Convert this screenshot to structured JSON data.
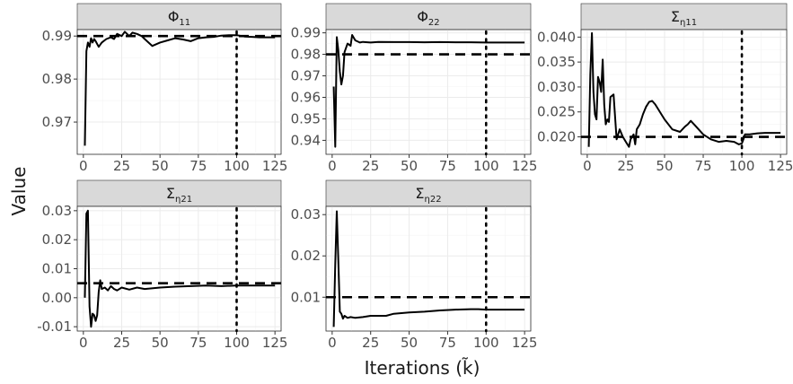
{
  "chart_data": {
    "type": "line",
    "xlabel": "Iterations (k̃)",
    "ylabel": "Value",
    "grid": true,
    "x_ticks": [
      0,
      25,
      50,
      75,
      100,
      125
    ],
    "panels": [
      {
        "title": "Φ",
        "title_sub": "11",
        "xlim": [
          -4,
          129
        ],
        "ylim": [
          0.9625,
          0.9915
        ],
        "y_ticks": [
          0.97,
          0.98,
          0.99
        ],
        "y_tick_labels": [
          "0.97",
          "0.98",
          "0.99"
        ],
        "reference_value": 0.99,
        "vertical_marker": 100,
        "series": [
          {
            "x": [
              1,
              2,
              3,
              4,
              5,
              6,
              7,
              8,
              10,
              12,
              15,
              18,
              20,
              22,
              25,
              27,
              30,
              32,
              35,
              38,
              40,
              45,
              50,
              55,
              60,
              65,
              70,
              75,
              80,
              85,
              90,
              95,
              100,
              105,
              110,
              115,
              120,
              125
            ],
            "y": [
              0.9645,
              0.9865,
              0.9885,
              0.9875,
              0.9895,
              0.9885,
              0.9893,
              0.9888,
              0.9875,
              0.9885,
              0.9893,
              0.9897,
              0.9893,
              0.9905,
              0.99,
              0.991,
              0.99,
              0.9908,
              0.9905,
              0.99,
              0.9893,
              0.9877,
              0.9885,
              0.989,
              0.9895,
              0.9892,
              0.9888,
              0.9895,
              0.9897,
              0.9898,
              0.9901,
              0.9902,
              0.9902,
              0.9899,
              0.9898,
              0.9897,
              0.9897,
              0.9897
            ]
          }
        ]
      },
      {
        "title": "Φ",
        "title_sub": "22",
        "xlim": [
          -4,
          129
        ],
        "ylim": [
          0.9335,
          0.9915
        ],
        "y_ticks": [
          0.94,
          0.95,
          0.96,
          0.97,
          0.98,
          0.99
        ],
        "y_tick_labels": [
          "0.94",
          "0.95",
          "0.96",
          "0.97",
          "0.98",
          "0.99"
        ],
        "reference_value": 0.98,
        "vertical_marker": 100,
        "series": [
          {
            "x": [
              1,
              2,
              3,
              4,
              5,
              6,
              7,
              8,
              10,
              12,
              13,
              15,
              18,
              20,
              25,
              30,
              40,
              50,
              60,
              70,
              80,
              90,
              100,
              110,
              125
            ],
            "y": [
              0.965,
              0.937,
              0.988,
              0.982,
              0.972,
              0.966,
              0.97,
              0.981,
              0.985,
              0.984,
              0.989,
              0.9865,
              0.9855,
              0.9858,
              0.9855,
              0.9858,
              0.9857,
              0.9857,
              0.9856,
              0.9857,
              0.9856,
              0.9856,
              0.9855,
              0.9855,
              0.9855
            ]
          }
        ]
      },
      {
        "title": "Σ",
        "title_sub": "η11",
        "xlim": [
          -4,
          129
        ],
        "ylim": [
          0.0165,
          0.0415
        ],
        "y_ticks": [
          0.02,
          0.025,
          0.03,
          0.035,
          0.04
        ],
        "y_tick_labels": [
          "0.020",
          "0.025",
          "0.030",
          "0.035",
          "0.040"
        ],
        "reference_value": 0.02,
        "vertical_marker": 100,
        "series": [
          {
            "x": [
              1,
              2,
              3,
              4,
              5,
              6,
              7,
              8,
              9,
              10,
              11,
              12,
              13,
              14,
              15,
              17,
              19,
              21,
              23,
              25,
              27,
              28,
              30,
              31,
              32,
              34,
              36,
              38,
              40,
              42,
              44,
              46,
              48,
              50,
              55,
              60,
              63,
              65,
              67,
              70,
              75,
              80,
              85,
              90,
              95,
              98,
              100,
              101,
              102,
              105,
              110,
              115,
              120,
              125
            ],
            "y": [
              0.018,
              0.0325,
              0.0408,
              0.029,
              0.0245,
              0.0235,
              0.032,
              0.031,
              0.029,
              0.0355,
              0.0265,
              0.0225,
              0.0235,
              0.023,
              0.028,
              0.0285,
              0.0195,
              0.0215,
              0.02,
              0.019,
              0.018,
              0.0195,
              0.0205,
              0.0185,
              0.0215,
              0.0225,
              0.0245,
              0.026,
              0.027,
              0.0272,
              0.0265,
              0.0255,
              0.0245,
              0.0235,
              0.0215,
              0.021,
              0.022,
              0.0225,
              0.0232,
              0.0222,
              0.0205,
              0.0195,
              0.019,
              0.0192,
              0.019,
              0.0185,
              0.0187,
              0.0195,
              0.0205,
              0.0205,
              0.0207,
              0.0208,
              0.0208,
              0.0208
            ]
          }
        ]
      },
      {
        "title": "Σ",
        "title_sub": "η21",
        "xlim": [
          -4,
          129
        ],
        "ylim": [
          -0.0115,
          0.0315
        ],
        "y_ticks": [
          -0.01,
          0.0,
          0.01,
          0.02,
          0.03
        ],
        "y_tick_labels": [
          "-0.01",
          "0.00",
          "0.01",
          "0.02",
          "0.03"
        ],
        "reference_value": 0.005,
        "vertical_marker": 100,
        "series": [
          {
            "x": [
              1,
              2,
              3,
              4,
              5,
              6,
              7,
              8,
              9,
              10,
              11,
              12,
              14,
              16,
              18,
              20,
              22,
              25,
              30,
              35,
              40,
              50,
              60,
              70,
              80,
              90,
              100,
              110,
              120,
              125
            ],
            "y": [
              0.0,
              0.029,
              0.03,
              -0.003,
              -0.01,
              -0.0055,
              -0.006,
              -0.008,
              -0.006,
              0.002,
              0.006,
              0.003,
              0.0035,
              0.0025,
              0.004,
              0.003,
              0.0025,
              0.0035,
              0.0028,
              0.0035,
              0.003,
              0.0035,
              0.0038,
              0.004,
              0.0042,
              0.004,
              0.0042,
              0.0042,
              0.0042,
              0.0042
            ]
          }
        ]
      },
      {
        "title": "Σ",
        "title_sub": "η22",
        "xlim": [
          -4,
          129
        ],
        "ylim": [
          0.0018,
          0.032
        ],
        "y_ticks": [
          0.01,
          0.02,
          0.03
        ],
        "y_tick_labels": [
          "0.01",
          "0.02",
          "0.03"
        ],
        "reference_value": 0.01,
        "vertical_marker": 100,
        "series": [
          {
            "x": [
              1,
              2,
              3,
              4,
              5,
              6,
              7,
              8,
              10,
              12,
              15,
              20,
              25,
              30,
              35,
              40,
              50,
              60,
              70,
              80,
              90,
              95,
              100,
              110,
              125
            ],
            "y": [
              0.0028,
              0.018,
              0.0308,
              0.019,
              0.0065,
              0.006,
              0.0048,
              0.0055,
              0.005,
              0.0052,
              0.005,
              0.0052,
              0.0055,
              0.0055,
              0.0055,
              0.006,
              0.0063,
              0.0065,
              0.0068,
              0.007,
              0.0071,
              0.0071,
              0.007,
              0.007,
              0.007
            ]
          }
        ]
      }
    ]
  }
}
